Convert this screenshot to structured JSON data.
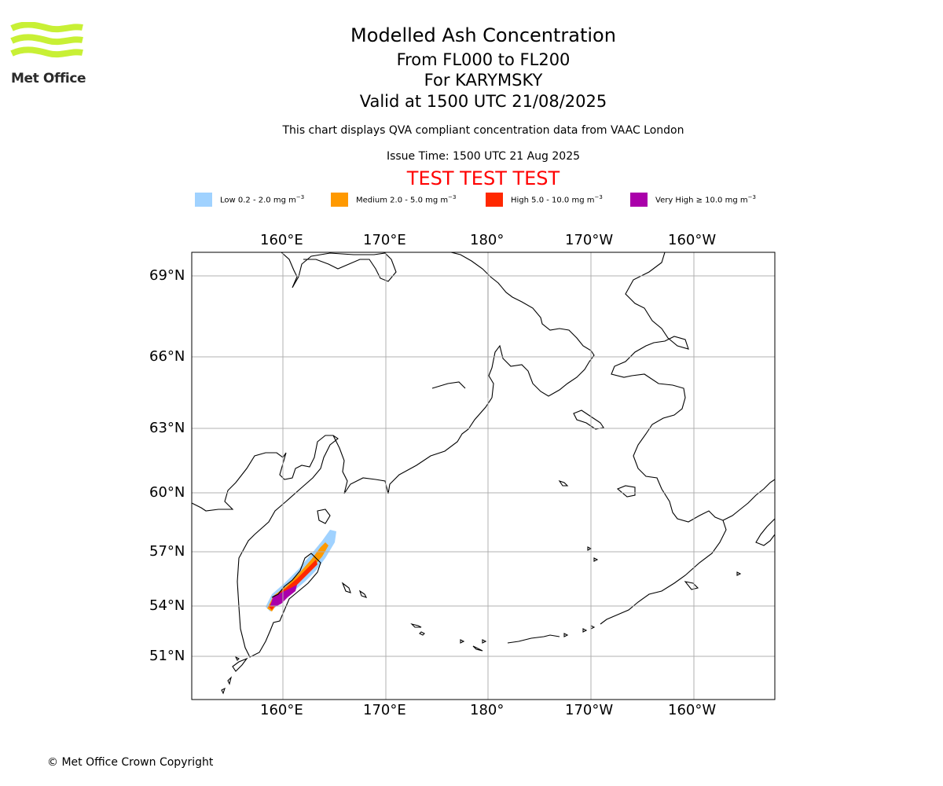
{
  "logo": {
    "text": "Met Office",
    "color": "#c8f035"
  },
  "title": {
    "main": "Modelled Ash Concentration",
    "levels": "From FL000 to FL200",
    "volcano": "For KARYMSKY",
    "valid": "Valid at 1500 UTC 21/08/2025"
  },
  "subtitle": "This chart displays QVA compliant concentration data from VAAC London",
  "issue_time": "Issue Time: 1500 UTC 21 Aug 2025",
  "test_banner": "TEST TEST TEST",
  "legend": [
    {
      "label": "Low 0.2 - 2.0 mg m",
      "sup": "−3",
      "color": "#a0d2ff"
    },
    {
      "label": "Medium 2.0 - 5.0 mg m",
      "sup": "−3",
      "color": "#ff9900"
    },
    {
      "label": "High 5.0 - 10.0 mg m",
      "sup": "−3",
      "color": "#ff2800"
    },
    {
      "label": "Very High  ≥  10.0 mg m",
      "sup": "−3",
      "color": "#aa00aa"
    }
  ],
  "map": {
    "lon_ticks_top": [
      "160°E",
      "170°E",
      "180°",
      "170°W",
      "160°W"
    ],
    "lon_ticks_bottom": [
      "160°E",
      "170°E",
      "180°",
      "170°W",
      "160°W"
    ],
    "lat_ticks": [
      "69°N",
      "66°N",
      "63°N",
      "60°N",
      "57°N",
      "54°N",
      "51°N"
    ]
  },
  "copyright": "© Met Office Crown Copyright"
}
